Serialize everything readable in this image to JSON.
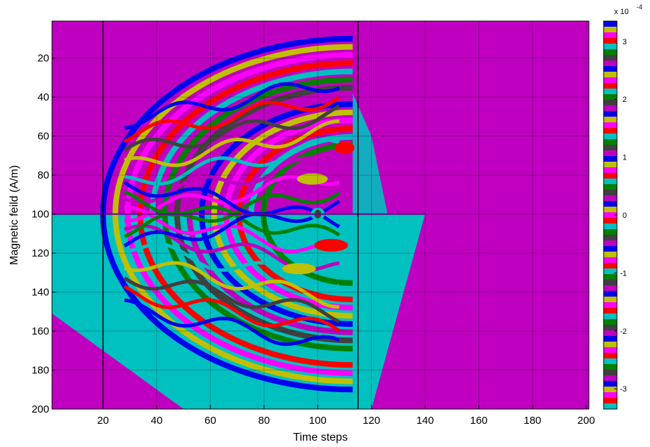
{
  "chart_data": {
    "type": "heatmap",
    "title": "",
    "xlabel": "Time steps",
    "ylabel": "Magnetic feild (A/m)",
    "xlim": [
      1,
      201
    ],
    "ylim": [
      200,
      1
    ],
    "x_ticks": [
      "20",
      "40",
      "60",
      "80",
      "100",
      "120",
      "140",
      "160",
      "180",
      "200"
    ],
    "y_ticks": [
      "20",
      "40",
      "60",
      "80",
      "100",
      "120",
      "140",
      "160",
      "180",
      "200"
    ],
    "grid": true,
    "palette": [
      "#0000ee",
      "#c0c000",
      "#ff00ff",
      "#ff0000",
      "#00c0c0",
      "#008000",
      "#404040",
      "#c000c0"
    ],
    "background_color": "#c000c0",
    "lower_fill_color": "#00c0c0",
    "colorbar": {
      "multiplier": "x 10",
      "exponent": "-4",
      "tick_labels": [
        "3",
        "2",
        "1",
        "0",
        "-1",
        "-2",
        "-3"
      ],
      "tick_values": [
        3,
        2,
        1,
        0,
        -1,
        -2,
        -3
      ],
      "range": [
        -3.35,
        3.35
      ]
    }
  }
}
